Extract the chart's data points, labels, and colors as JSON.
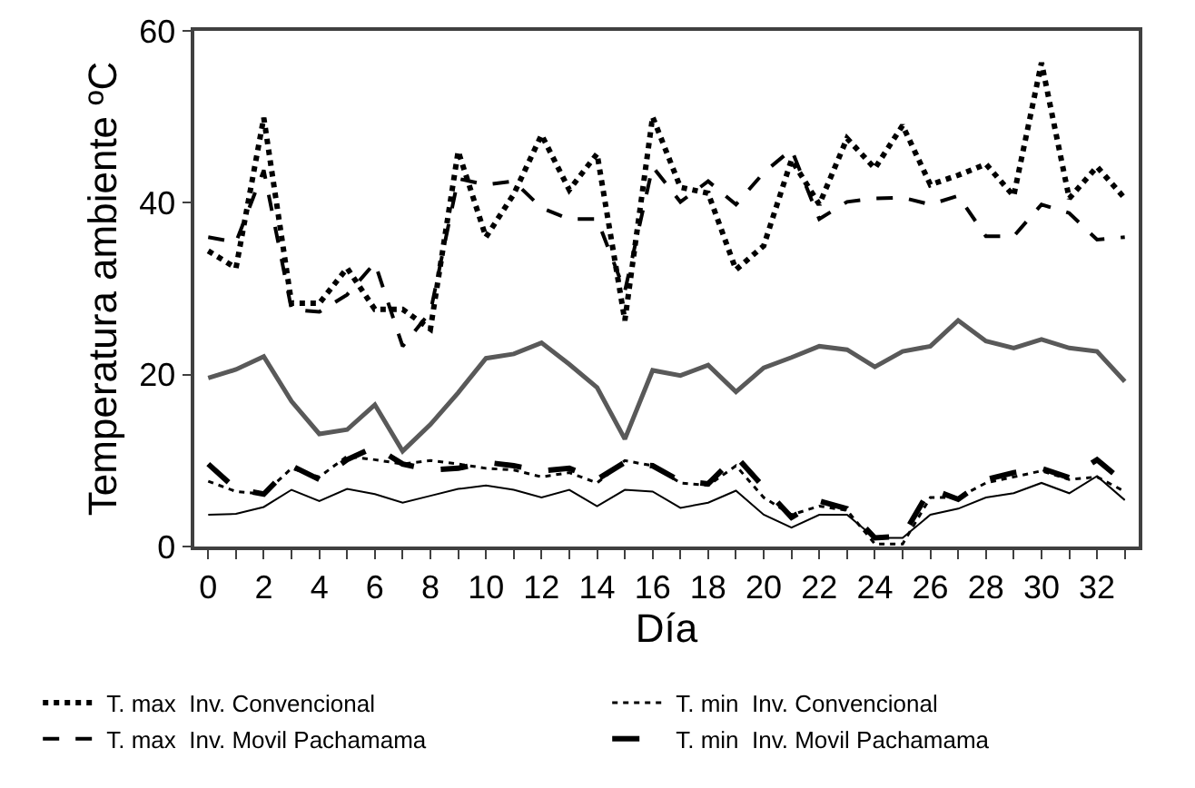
{
  "chart_data": {
    "type": "line",
    "xlabel": "Día",
    "ylabel": "Temperatura ambiente ºC",
    "x": [
      0,
      1,
      2,
      3,
      4,
      5,
      6,
      7,
      8,
      9,
      10,
      11,
      12,
      13,
      14,
      15,
      16,
      17,
      18,
      19,
      20,
      21,
      22,
      23,
      24,
      25,
      26,
      27,
      28,
      29,
      30,
      31,
      32,
      33
    ],
    "xlim": [
      -0.5,
      33.5
    ],
    "xticks": [
      0,
      {
        "value": 1,
        "label": null
      },
      2,
      {
        "value": 3,
        "label": null
      },
      4,
      {
        "value": 5,
        "label": null
      },
      6,
      {
        "value": 7,
        "label": null
      },
      8,
      {
        "value": 9,
        "label": null
      },
      10,
      {
        "value": 11,
        "label": null
      },
      12,
      {
        "value": 13,
        "label": null
      },
      14,
      {
        "value": 15,
        "label": null
      },
      16,
      {
        "value": 17,
        "label": null
      },
      18,
      {
        "value": 19,
        "label": null
      },
      20,
      {
        "value": 21,
        "label": null
      },
      22,
      {
        "value": 23,
        "label": null
      },
      24,
      {
        "value": 25,
        "label": null
      },
      26,
      {
        "value": 27,
        "label": null
      },
      28,
      {
        "value": 29,
        "label": null
      },
      30,
      {
        "value": 31,
        "label": null
      },
      32,
      {
        "value": 33,
        "label": null
      }
    ],
    "ylim": [
      0,
      60
    ],
    "yticks": [
      0,
      20,
      40,
      60
    ],
    "grid": false,
    "legend": "bottom",
    "marker": "none",
    "series": [
      {
        "name": "T. max  Inv. Convencional",
        "color": "#000000",
        "line_style": "dotted",
        "values": [
          34.4,
          32.4,
          49.9,
          28.3,
          28.3,
          32.4,
          27.6,
          27.6,
          25.3,
          46,
          36,
          41,
          47.9,
          41.5,
          45.7,
          26.3,
          50,
          41.8,
          41.1,
          32.2,
          35,
          45,
          39.8,
          47.5,
          44,
          49,
          42.1,
          43.2,
          44.5,
          40.8,
          56.3,
          40.5,
          44.2,
          40.5
        ]
      },
      {
        "name": "T. min  Inv. Convencional",
        "color": "#000000",
        "line_style": "dotted",
        "values": [
          7.6,
          6.4,
          6.1,
          9.1,
          8.1,
          10.5,
          10.1,
          9.6,
          10,
          9.6,
          9.1,
          8.9,
          8.1,
          8.6,
          7.4,
          10,
          9.4,
          7.4,
          7.1,
          9.4,
          5.7,
          3.7,
          4.7,
          4.2,
          0.3,
          0.3,
          5.7,
          5.7,
          7.4,
          8.1,
          8.8,
          7.8,
          8.1,
          6.4
        ]
      },
      {
        "name": "T. max  Inv. Movil Pachamama",
        "color": "#000000",
        "line_style": "dashed",
        "values": [
          36,
          35.4,
          43.8,
          27.6,
          27.3,
          29.3,
          33,
          23.3,
          27.3,
          42.8,
          42.1,
          42.5,
          39.4,
          38.1,
          38.1,
          29.7,
          44.2,
          40.1,
          42.5,
          39.8,
          43.5,
          46.2,
          38.1,
          40.1,
          40.5,
          40.6,
          39.8,
          40.8,
          36.1,
          36.1,
          39.8,
          38.8,
          35.7,
          36
        ]
      },
      {
        "name": "T. min  Inv. Movil Pachamama",
        "color": "#000000",
        "line_style": "dashed",
        "values": [
          9.6,
          6.7,
          6.1,
          9.4,
          7.8,
          10.1,
          11.6,
          9.6,
          8.9,
          9.1,
          9.8,
          9.4,
          8.8,
          9.1,
          7.8,
          9.8,
          9.4,
          7.6,
          7.3,
          10.5,
          6.9,
          3.4,
          5.3,
          4.4,
          1,
          1.2,
          6.7,
          5.5,
          7.8,
          8.6,
          9.1,
          8,
          10.1,
          7.4
        ]
      },
      {
        "color": "#595959",
        "line_style": "solid",
        "values": [
          19.6,
          20.6,
          22.1,
          16.9,
          13.1,
          13.6,
          16.5,
          11.1,
          14.2,
          17.9,
          21.9,
          22.4,
          23.7,
          21.2,
          18.5,
          12.5,
          20.5,
          19.9,
          21.1,
          18,
          20.8,
          22,
          23.3,
          22.9,
          20.9,
          22.7,
          23.3,
          26.3,
          23.9,
          23.1,
          24.1,
          23.1,
          22.7,
          19.2
        ]
      },
      {
        "color": "#000000",
        "line_style": "solid",
        "values": [
          3.7,
          3.8,
          4.6,
          6.6,
          5.3,
          6.7,
          6.1,
          5.1,
          5.9,
          6.7,
          7.1,
          6.6,
          5.7,
          6.6,
          4.7,
          6.6,
          6.4,
          4.5,
          5.1,
          6.5,
          3.7,
          2.2,
          3.7,
          3.7,
          1,
          1,
          3.7,
          4.4,
          5.7,
          6.2,
          7.4,
          6.2,
          8.2,
          5.4
        ]
      }
    ]
  }
}
